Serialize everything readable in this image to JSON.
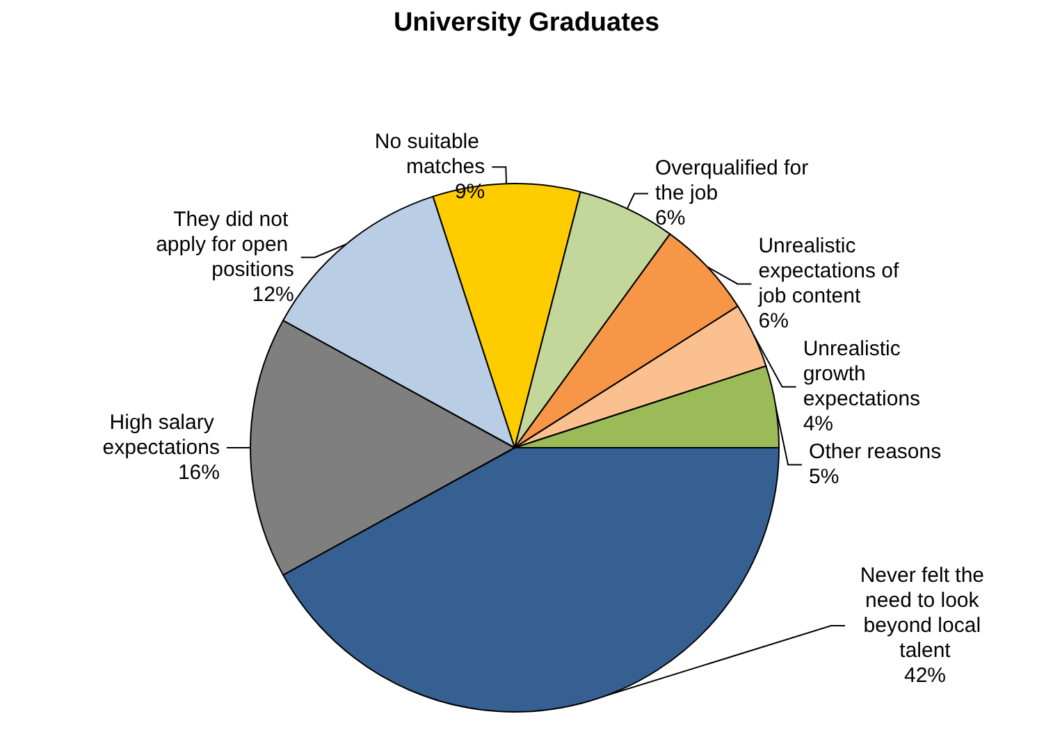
{
  "chart_data": {
    "type": "pie",
    "title": "University Graduates",
    "categories": [
      "Never felt the need to look beyond local talent",
      "High salary expectations",
      "They did not apply for open positions",
      "No suitable matches",
      "Overqualified for the job",
      "Unrealistic expectations of job content",
      "Unrealistic growth expectations",
      "Other reasons"
    ],
    "values": [
      42,
      16,
      12,
      9,
      6,
      6,
      4,
      5
    ],
    "colors": [
      "#366092",
      "#7f7f7f",
      "#b9cde5",
      "#ffcc00",
      "#c4d79b",
      "#f79646",
      "#fac090",
      "#9bbb59"
    ],
    "value_labels": [
      "42%",
      "16%",
      "12%",
      "9%",
      "6%",
      "6%",
      "4%",
      "5%"
    ],
    "legend": false
  }
}
